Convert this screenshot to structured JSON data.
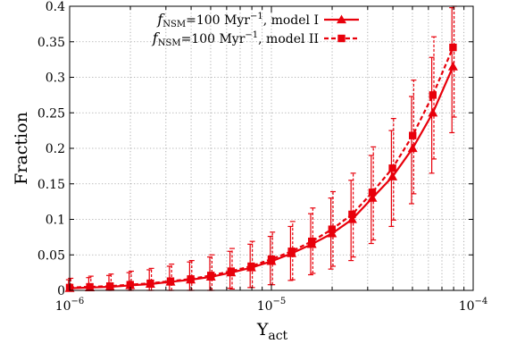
{
  "chart_data": {
    "type": "line",
    "xlabel": "Y",
    "xlabel_sub": "act",
    "ylabel": "Fraction",
    "xscale": "log",
    "xlim": [
      1e-06,
      0.0001
    ],
    "ylim": [
      0,
      0.4
    ],
    "grid": true,
    "legend_position": "top-left",
    "x_ticks": [
      {
        "value": 1e-06,
        "base": "10",
        "exp": "−6"
      },
      {
        "value": 1e-05,
        "base": "10",
        "exp": "−5"
      },
      {
        "value": 0.0001,
        "base": "10",
        "exp": "−4"
      }
    ],
    "y_ticks": [
      {
        "value": 0,
        "label": "0"
      },
      {
        "value": 0.05,
        "label": "0.05"
      },
      {
        "value": 0.1,
        "label": "0.1"
      },
      {
        "value": 0.15,
        "label": "0.15"
      },
      {
        "value": 0.2,
        "label": "0.2"
      },
      {
        "value": 0.25,
        "label": "0.25"
      },
      {
        "value": 0.3,
        "label": "0.3"
      },
      {
        "value": 0.35,
        "label": "0.35"
      },
      {
        "value": 0.4,
        "label": "0.4"
      }
    ],
    "x": [
      1e-06,
      1.2589e-06,
      1.5849e-06,
      1.9953e-06,
      2.5119e-06,
      3.1623e-06,
      3.9811e-06,
      5.0119e-06,
      6.3096e-06,
      7.9433e-06,
      1e-05,
      1.2589e-05,
      1.5849e-05,
      1.9953e-05,
      2.5119e-05,
      3.1623e-05,
      3.9811e-05,
      5.0119e-05,
      6.3096e-05,
      7.9433e-05
    ],
    "series": [
      {
        "name": "model I",
        "legend_f": "f",
        "legend_sub": "NSM",
        "legend_rest": "=100 Myr",
        "legend_sup": "−1",
        "legend_tail": ", model I",
        "color": "#e8000b",
        "line_style": "solid",
        "marker": "triangle",
        "y": [
          0.003,
          0.004,
          0.005,
          0.007,
          0.009,
          0.012,
          0.015,
          0.019,
          0.025,
          0.032,
          0.041,
          0.052,
          0.065,
          0.08,
          0.1,
          0.13,
          0.16,
          0.2,
          0.25,
          0.315
        ],
        "err_lo": [
          0.003,
          0.004,
          0.005,
          0.007,
          0.009,
          0.012,
          0.015,
          0.019,
          0.022,
          0.028,
          0.033,
          0.038,
          0.043,
          0.05,
          0.058,
          0.064,
          0.07,
          0.078,
          0.085,
          0.093
        ],
        "err_hi": [
          0.012,
          0.014,
          0.016,
          0.018,
          0.02,
          0.022,
          0.025,
          0.028,
          0.03,
          0.033,
          0.035,
          0.038,
          0.043,
          0.05,
          0.055,
          0.06,
          0.065,
          0.073,
          0.078,
          0.083
        ]
      },
      {
        "name": "model II",
        "legend_f": "f",
        "legend_sub": "NSM",
        "legend_rest": "=100 Myr",
        "legend_sup": "−1",
        "legend_tail": ", model II",
        "color": "#e8000b",
        "line_style": "dashed",
        "marker": "square",
        "y": [
          0.004,
          0.005,
          0.006,
          0.008,
          0.01,
          0.013,
          0.016,
          0.021,
          0.027,
          0.034,
          0.044,
          0.055,
          0.069,
          0.086,
          0.107,
          0.138,
          0.172,
          0.218,
          0.275,
          0.342
        ],
        "err_lo": [
          0.004,
          0.005,
          0.006,
          0.008,
          0.01,
          0.013,
          0.016,
          0.021,
          0.025,
          0.03,
          0.036,
          0.04,
          0.045,
          0.052,
          0.06,
          0.067,
          0.073,
          0.082,
          0.09,
          0.098
        ],
        "err_hi": [
          0.013,
          0.015,
          0.017,
          0.019,
          0.021,
          0.024,
          0.026,
          0.029,
          0.032,
          0.035,
          0.038,
          0.042,
          0.047,
          0.053,
          0.058,
          0.064,
          0.07,
          0.078,
          0.082,
          0.058
        ]
      }
    ]
  }
}
